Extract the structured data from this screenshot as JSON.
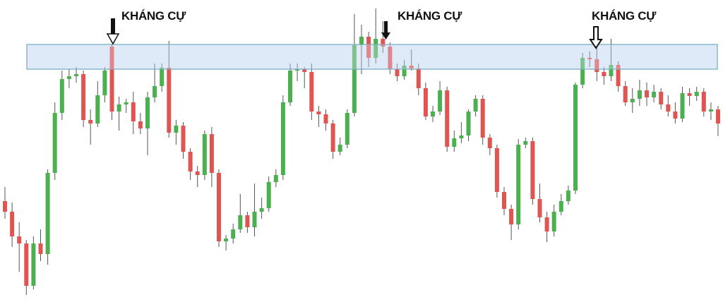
{
  "chart_data": {
    "type": "candlestick",
    "ylim": [
      0,
      435
    ],
    "up_color": "#4caf50",
    "down_color": "#e05452",
    "resistance_zone": {
      "low": 337,
      "high": 372,
      "fill": "#dce8f8",
      "stroke": "#7fb0c2"
    },
    "annotations": [
      "KHÁNG CỰ",
      "KHÁNG CỰ",
      "KHÁNG CỰ"
    ],
    "open": [
      150,
      135,
      100,
      90,
      30,
      90,
      75,
      190,
      275,
      323,
      327,
      330,
      265,
      260,
      300,
      369,
      277,
      287,
      290,
      263,
      253,
      297,
      313,
      339,
      247,
      257,
      220,
      192,
      187,
      245,
      190,
      93,
      97,
      110,
      130,
      113,
      135,
      140,
      177,
      187,
      290,
      335,
      337,
      333,
      277,
      273,
      260,
      220,
      230,
      275,
      371,
      383,
      353,
      380,
      369,
      337,
      327,
      342,
      338,
      310,
      270,
      277,
      307,
      227,
      239,
      243,
      277,
      295,
      240,
      225,
      163,
      139,
      117,
      230,
      235,
      153,
      127,
      107,
      135,
      150,
      165,
      315,
      353,
      351,
      333,
      327,
      343,
      313,
      290,
      295,
      307,
      297,
      305,
      287,
      277,
      267,
      303,
      299,
      305,
      277,
      280
    ],
    "high": [
      170,
      148,
      120,
      95,
      100,
      110,
      195,
      290,
      335,
      337,
      340,
      335,
      280,
      320,
      340,
      373,
      298,
      295,
      305,
      275,
      305,
      345,
      345,
      377,
      265,
      262,
      225,
      200,
      250,
      255,
      195,
      102,
      118,
      160,
      135,
      175,
      155,
      185,
      195,
      300,
      345,
      345,
      340,
      345,
      285,
      280,
      265,
      240,
      280,
      415,
      400,
      390,
      423,
      405,
      375,
      345,
      350,
      365,
      345,
      318,
      285,
      320,
      312,
      250,
      262,
      280,
      300,
      300,
      245,
      230,
      170,
      145,
      238,
      240,
      240,
      175,
      135,
      145,
      160,
      172,
      318,
      360,
      362,
      370,
      340,
      380,
      348,
      320,
      310,
      322,
      318,
      315,
      310,
      300,
      290,
      312,
      310,
      312,
      310,
      290,
      285
    ],
    "low": [
      125,
      85,
      50,
      17,
      25,
      65,
      60,
      180,
      265,
      310,
      318,
      255,
      230,
      255,
      290,
      265,
      250,
      275,
      245,
      245,
      215,
      290,
      305,
      240,
      230,
      210,
      180,
      170,
      180,
      170,
      85,
      80,
      90,
      105,
      105,
      100,
      125,
      135,
      170,
      180,
      285,
      320,
      310,
      265,
      255,
      250,
      210,
      215,
      225,
      270,
      330,
      340,
      345,
      360,
      330,
      320,
      322,
      335,
      300,
      265,
      262,
      272,
      220,
      220,
      232,
      235,
      270,
      230,
      215,
      155,
      130,
      95,
      110,
      225,
      145,
      120,
      92,
      100,
      130,
      145,
      160,
      310,
      340,
      320,
      315,
      320,
      305,
      285,
      275,
      285,
      285,
      290,
      280,
      270,
      260,
      262,
      285,
      292,
      270,
      265,
      242
    ],
    "close": [
      135,
      100,
      90,
      30,
      90,
      75,
      190,
      275,
      323,
      327,
      330,
      265,
      260,
      300,
      335,
      277,
      287,
      290,
      263,
      253,
      297,
      313,
      339,
      247,
      257,
      220,
      192,
      187,
      245,
      190,
      93,
      97,
      110,
      130,
      113,
      135,
      140,
      177,
      187,
      290,
      335,
      337,
      333,
      277,
      273,
      260,
      220,
      230,
      275,
      371,
      383,
      353,
      380,
      369,
      337,
      327,
      342,
      338,
      310,
      270,
      277,
      307,
      227,
      239,
      243,
      277,
      295,
      240,
      225,
      163,
      139,
      117,
      230,
      235,
      153,
      127,
      107,
      135,
      150,
      165,
      315,
      353,
      351,
      333,
      327,
      343,
      313,
      290,
      295,
      307,
      297,
      305,
      287,
      277,
      267,
      303,
      299,
      305,
      277,
      280,
      260
    ]
  }
}
